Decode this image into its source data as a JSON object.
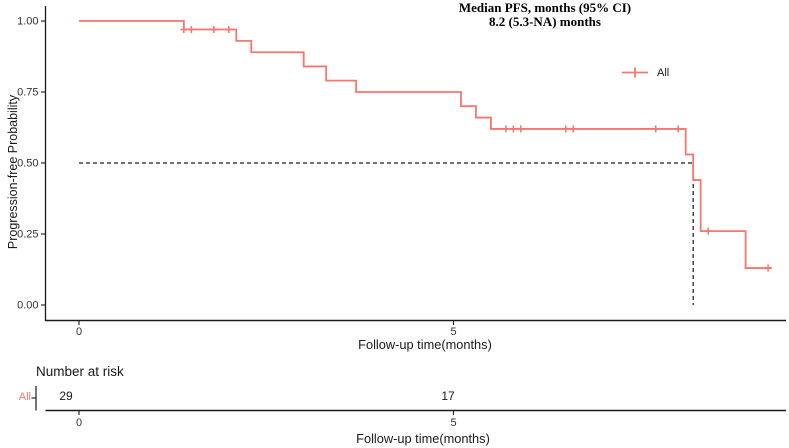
{
  "chart_data": {
    "type": "line",
    "subtype": "kaplan-meier-step",
    "title_lines": [
      "Median PFS, months (95% CI)",
      "8.2 (5.3-NA) months"
    ],
    "xlabel": "Follow-up time(months)",
    "ylabel": "Progression-free Probability",
    "xlim": [
      -0.45,
      9.44
    ],
    "ylim": [
      0,
      1.05
    ],
    "grid": false,
    "background": "#ffffff",
    "axis_color": "#1a1a1a",
    "legend_position": "inside-right",
    "x_ticks": [
      {
        "value": 0,
        "label": "0"
      },
      {
        "value": 5,
        "label": "5"
      }
    ],
    "y_ticks": [
      {
        "value": 0.0,
        "label": "0.00"
      },
      {
        "value": 0.25,
        "label": "0.25"
      },
      {
        "value": 0.5,
        "label": "0.50"
      },
      {
        "value": 0.75,
        "label": "0.75"
      },
      {
        "value": 1.0,
        "label": "1.00"
      }
    ],
    "legend": [
      {
        "label": "All",
        "color": "#F8766D"
      }
    ],
    "median_line": {
      "time": 8.2,
      "probability": 0.5,
      "style": "dashed"
    },
    "series": [
      {
        "name": "All",
        "color": "#F8766D",
        "steps": [
          [
            0,
            1.0
          ],
          [
            1.4,
            0.97
          ],
          [
            2.1,
            0.93
          ],
          [
            2.3,
            0.89
          ],
          [
            3.0,
            0.84
          ],
          [
            3.3,
            0.79
          ],
          [
            3.7,
            0.75
          ],
          [
            5.1,
            0.7
          ],
          [
            5.3,
            0.66
          ],
          [
            5.5,
            0.62
          ],
          [
            8.1,
            0.53
          ],
          [
            8.2,
            0.44
          ],
          [
            8.3,
            0.26
          ],
          [
            8.9,
            0.13
          ],
          [
            9.25,
            0.13
          ]
        ],
        "censors": [
          [
            1.4,
            0.97
          ],
          [
            1.5,
            0.97
          ],
          [
            1.8,
            0.97
          ],
          [
            2.0,
            0.97
          ],
          [
            5.7,
            0.62
          ],
          [
            5.8,
            0.62
          ],
          [
            5.9,
            0.62
          ],
          [
            6.5,
            0.62
          ],
          [
            6.6,
            0.62
          ],
          [
            7.7,
            0.62
          ],
          [
            8.0,
            0.62
          ],
          [
            8.4,
            0.26
          ],
          [
            9.2,
            0.13
          ]
        ]
      }
    ],
    "risk_table": {
      "title": "Number at risk",
      "xlabel": "Follow-up time(months)",
      "rows": [
        {
          "label": "All",
          "color": "#F8766D",
          "values": [
            {
              "time": 0,
              "n": "29"
            },
            {
              "time": 5,
              "n": "17"
            }
          ]
        }
      ]
    }
  }
}
